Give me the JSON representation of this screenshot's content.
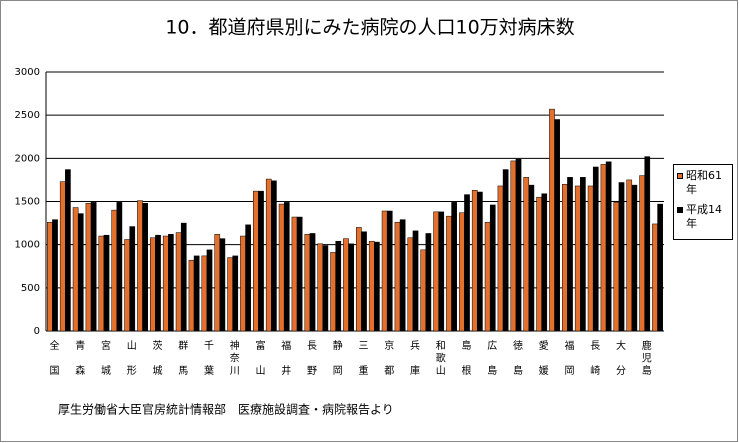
{
  "chart_data": {
    "type": "bar",
    "title": "10．都道府県別にみた病院の人口10万対病床数",
    "source": "厚生労働省大臣官房統計情報部　医療施設調査・病院報告より",
    "categories": [
      "全国",
      null,
      "青森",
      null,
      "宮城",
      null,
      "山形",
      null,
      "茨城",
      null,
      "群馬",
      null,
      "千葉",
      null,
      "神奈川",
      null,
      "富山",
      null,
      "福井",
      null,
      "長野",
      null,
      "静岡",
      null,
      "三重",
      null,
      "京都",
      null,
      "兵庫",
      null,
      "和歌山",
      null,
      "島根",
      null,
      "広島",
      null,
      "徳島",
      null,
      "愛媛",
      null,
      "福岡",
      null,
      "長崎",
      null,
      "大分",
      null,
      "鹿児島",
      null
    ],
    "series": [
      {
        "name": "昭和61年",
        "color": "#e4702e",
        "values": [
          1260,
          1730,
          1430,
          1480,
          1100,
          1400,
          1060,
          1510,
          1080,
          1100,
          1140,
          820,
          870,
          1120,
          850,
          1100,
          1620,
          1760,
          1470,
          1320,
          1120,
          1010,
          910,
          1070,
          1200,
          1040,
          1390,
          1260,
          1080,
          940,
          1380,
          1330,
          1370,
          1630,
          1260,
          1680,
          1970,
          1780,
          1550,
          2570,
          1700,
          1680,
          1680,
          1930,
          1490,
          1750,
          1800,
          1240
        ]
      },
      {
        "name": "平成14年",
        "color": "#000000",
        "values": [
          1290,
          1870,
          1360,
          1490,
          1110,
          1490,
          1210,
          1480,
          1110,
          1120,
          1250,
          870,
          940,
          1070,
          870,
          1230,
          1620,
          1740,
          1490,
          1320,
          1130,
          990,
          1040,
          1010,
          1150,
          1030,
          1390,
          1290,
          1160,
          1130,
          1380,
          1490,
          1580,
          1610,
          1460,
          1870,
          1990,
          1690,
          1590,
          2450,
          1780,
          1780,
          1900,
          1960,
          1720,
          1690,
          2020,
          1470
        ]
      }
    ],
    "ylim": [
      0,
      3000
    ],
    "yticks": [
      0,
      500,
      1000,
      1500,
      2000,
      2500,
      3000
    ],
    "grid": true,
    "legend": "right"
  }
}
